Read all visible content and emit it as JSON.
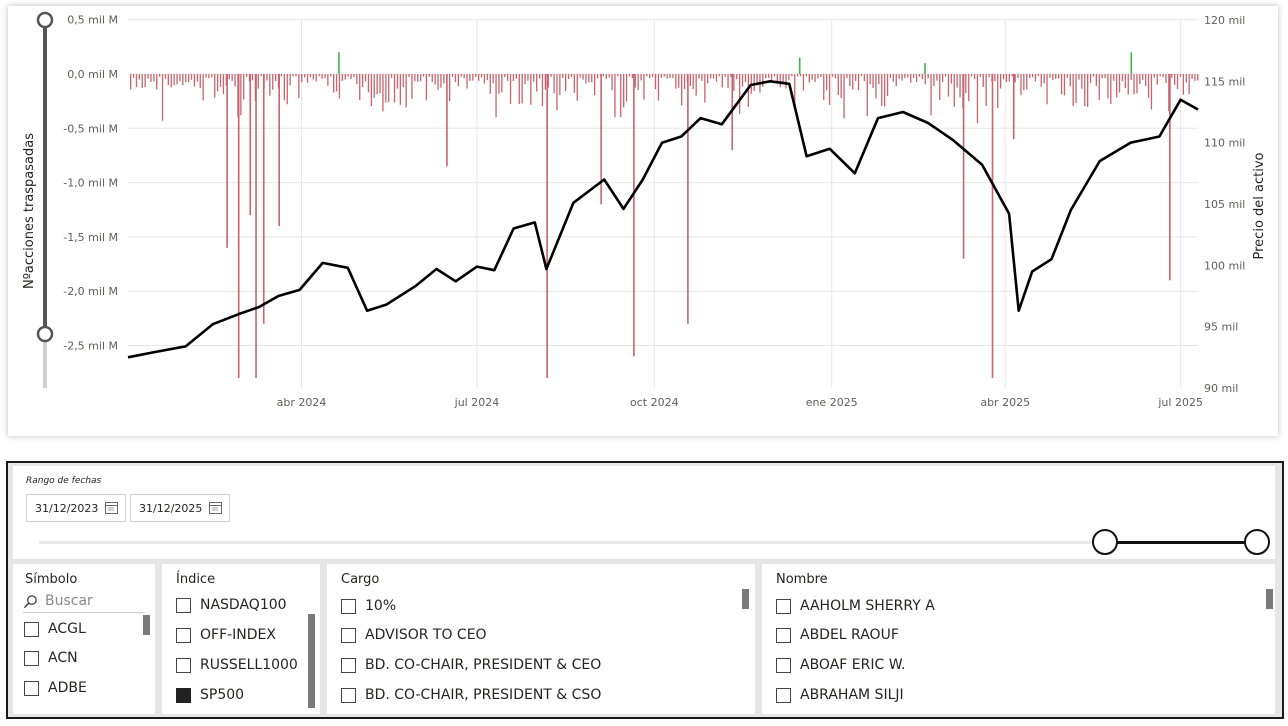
{
  "chart": {
    "left_axis_title": "Nºacciones traspasadas",
    "right_axis_title": "Precio del activo",
    "left_ticks": [
      "0,5 mil M",
      "0,0 mil M",
      "-0,5 mil M",
      "-1,0 mil M",
      "-1,5 mil M",
      "-2,0 mil M",
      "-2,5 mil M"
    ],
    "right_ticks": [
      "120 mil",
      "115 mil",
      "110 mil",
      "105 mil",
      "100 mil",
      "95 mil",
      "90 mil"
    ],
    "x_ticks": [
      "abr 2024",
      "jul 2024",
      "oct 2024",
      "ene 2025",
      "abr 2025",
      "jul 2025"
    ],
    "colors": {
      "negative_bar": "#c9636c",
      "positive_bar": "#3db549",
      "price_line": "#000000",
      "grid": "#e8e8e8"
    }
  },
  "chart_data": {
    "type": "bar+line",
    "x_range": [
      "2024-01-02",
      "2025-07-10"
    ],
    "left_axis": {
      "title": "Nºacciones traspasadas",
      "unit": "mil M",
      "ylim": [
        -2.8,
        0.5
      ]
    },
    "right_axis": {
      "title": "Precio del activo",
      "unit": "mil",
      "ylim": [
        90,
        120
      ]
    },
    "series": [
      {
        "type": "line",
        "axis": "right",
        "points": [
          [
            "2024-01-02",
            92.5
          ],
          [
            "2024-01-15",
            92.9
          ],
          [
            "2024-02-01",
            93.4
          ],
          [
            "2024-02-15",
            95.2
          ],
          [
            "2024-02-28",
            96.0
          ],
          [
            "2024-03-10",
            96.6
          ],
          [
            "2024-03-20",
            97.5
          ],
          [
            "2024-03-31",
            98.0
          ],
          [
            "2024-04-12",
            100.2
          ],
          [
            "2024-04-25",
            99.8
          ],
          [
            "2024-05-05",
            96.3
          ],
          [
            "2024-05-15",
            96.8
          ],
          [
            "2024-05-30",
            98.3
          ],
          [
            "2024-06-10",
            99.7
          ],
          [
            "2024-06-20",
            98.7
          ],
          [
            "2024-07-01",
            99.9
          ],
          [
            "2024-07-10",
            99.6
          ],
          [
            "2024-07-20",
            103.0
          ],
          [
            "2024-07-31",
            103.5
          ],
          [
            "2024-08-06",
            99.7
          ],
          [
            "2024-08-20",
            105.1
          ],
          [
            "2024-09-05",
            107.0
          ],
          [
            "2024-09-15",
            104.6
          ],
          [
            "2024-09-25",
            107.0
          ],
          [
            "2024-10-05",
            110.0
          ],
          [
            "2024-10-15",
            110.5
          ],
          [
            "2024-10-25",
            112.0
          ],
          [
            "2024-11-05",
            111.5
          ],
          [
            "2024-11-20",
            114.7
          ],
          [
            "2024-11-30",
            115.0
          ],
          [
            "2024-12-10",
            114.8
          ],
          [
            "2024-12-19",
            108.9
          ],
          [
            "2024-12-31",
            109.5
          ],
          [
            "2025-01-13",
            107.5
          ],
          [
            "2025-01-25",
            112.0
          ],
          [
            "2025-02-07",
            112.5
          ],
          [
            "2025-02-20",
            111.6
          ],
          [
            "2025-03-05",
            110.2
          ],
          [
            "2025-03-20",
            108.2
          ],
          [
            "2025-04-03",
            104.2
          ],
          [
            "2025-04-08",
            96.3
          ],
          [
            "2025-04-15",
            99.5
          ],
          [
            "2025-04-25",
            100.5
          ],
          [
            "2025-05-05",
            104.5
          ],
          [
            "2025-05-20",
            108.5
          ],
          [
            "2025-06-05",
            110.0
          ],
          [
            "2025-06-20",
            110.5
          ],
          [
            "2025-07-01",
            113.5
          ],
          [
            "2025-07-10",
            112.7
          ]
        ]
      },
      {
        "type": "bar",
        "axis": "left",
        "note": "net shares traded per day (negative = sales); largest negatives around late Feb–Mar 2024 (~-2.8), Aug 2024 (~-2.8), Sep 2024 (~-2.6), Mar 2025 (~-2.8), Jun 2025 (~-1.9)",
        "bars": [
          [
            "2024-02-22",
            -1.6
          ],
          [
            "2024-02-28",
            -2.8
          ],
          [
            "2024-03-05",
            -1.3
          ],
          [
            "2024-03-08",
            -2.8
          ],
          [
            "2024-03-12",
            -2.3
          ],
          [
            "2024-03-20",
            -1.4
          ],
          [
            "2024-06-15",
            -0.85
          ],
          [
            "2024-08-06",
            -2.8
          ],
          [
            "2024-09-03",
            -1.2
          ],
          [
            "2024-09-20",
            -2.6
          ],
          [
            "2024-10-18",
            -2.3
          ],
          [
            "2024-11-10",
            -0.7
          ],
          [
            "2025-03-10",
            -1.7
          ],
          [
            "2025-03-25",
            -2.8
          ],
          [
            "2025-04-05",
            -0.6
          ],
          [
            "2025-06-25",
            -1.9
          ],
          [
            "2025-06-05",
            0.2
          ],
          [
            "2024-04-20",
            0.2
          ],
          [
            "2024-12-15",
            0.15
          ],
          [
            "2025-02-18",
            0.1
          ]
        ]
      }
    ]
  },
  "date_filter": {
    "title": "Rango de fechas",
    "start": "31/12/2023",
    "end": "31/12/2025"
  },
  "symbol_filter": {
    "header": "Símbolo",
    "search_placeholder": "Buscar",
    "items": [
      "ACGL",
      "ACN",
      "ADBE"
    ]
  },
  "index_filter": {
    "header": "Índice",
    "items": [
      {
        "label": "NASDAQ100",
        "checked": false
      },
      {
        "label": "OFF-INDEX",
        "checked": false
      },
      {
        "label": "RUSSELL1000",
        "checked": false
      },
      {
        "label": "SP500",
        "checked": true
      }
    ]
  },
  "cargo_filter": {
    "header": "Cargo",
    "items": [
      "10%",
      "ADVISOR TO CEO",
      "BD. CO-CHAIR, PRESIDENT & CEO",
      "BD. CO-CHAIR, PRESIDENT & CSO"
    ]
  },
  "name_filter": {
    "header": "Nombre",
    "items": [
      "AAHOLM SHERRY A",
      "ABDEL RAOUF",
      "ABOAF ERIC W.",
      "ABRAHAM SILJI"
    ]
  }
}
